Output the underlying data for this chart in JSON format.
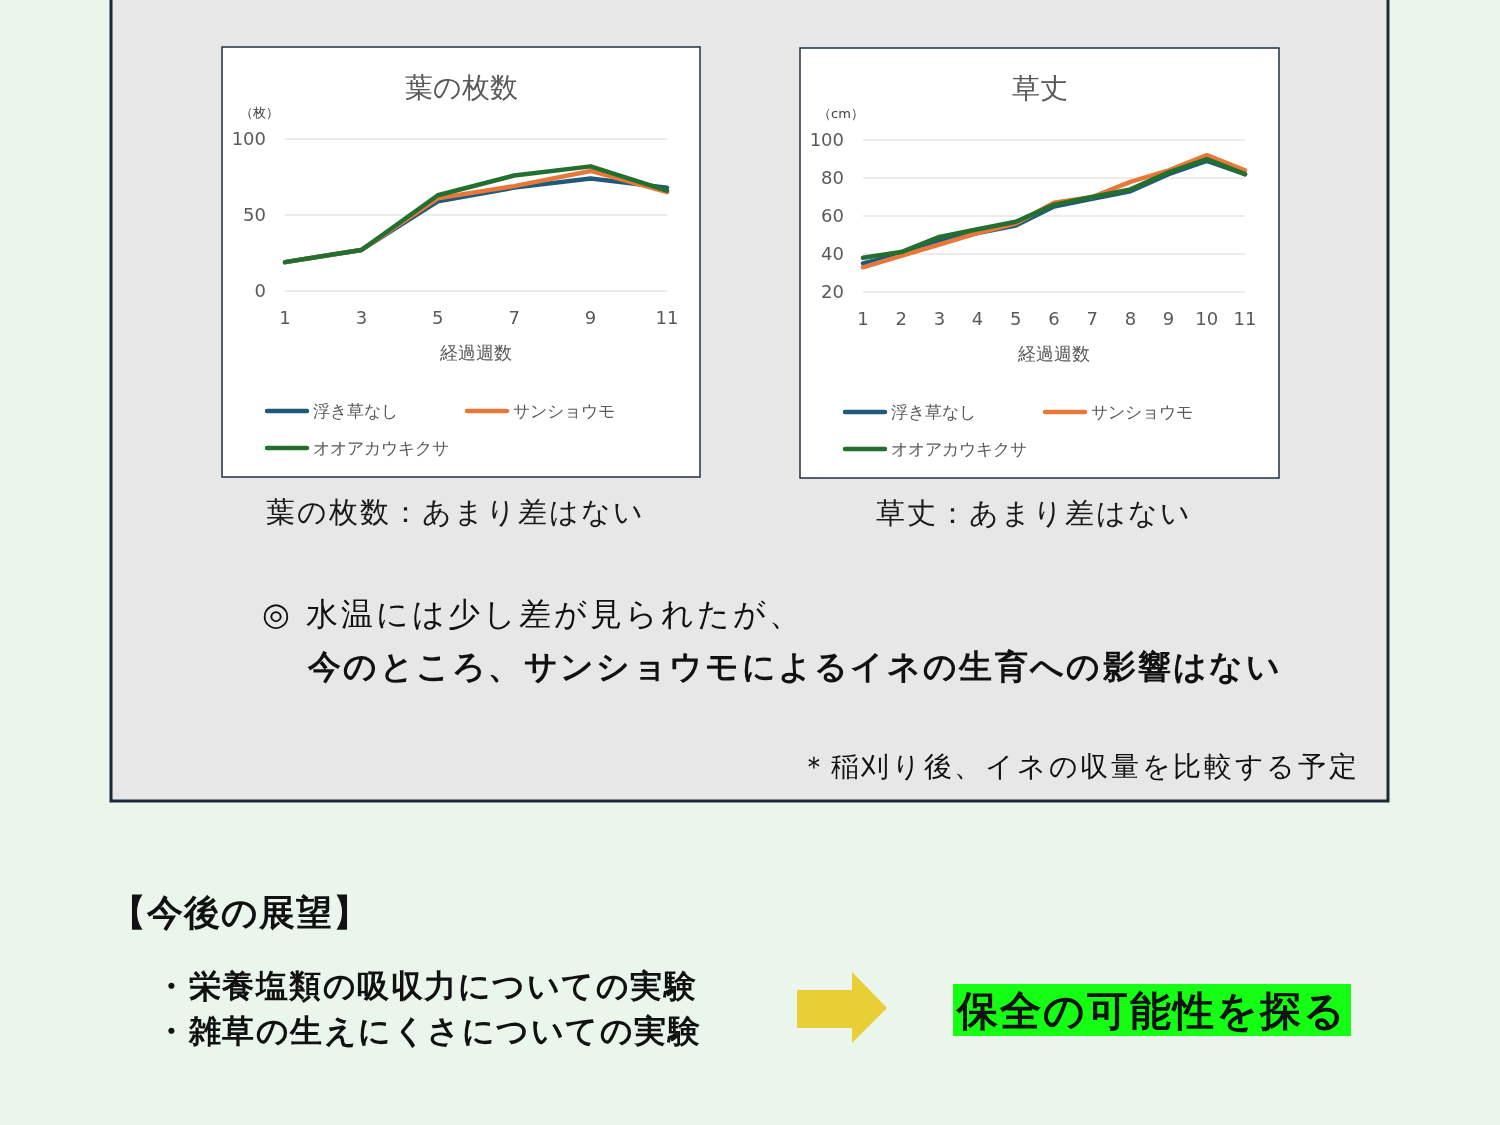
{
  "chart_data": [
    {
      "type": "line",
      "title": "葉の枚数",
      "xlabel": "経過週数",
      "ylabel": "（枚）",
      "categories": [
        "1",
        "3",
        "5",
        "7",
        "9",
        "11"
      ],
      "series": [
        {
          "name": "浮き草なし",
          "color": "#1f5a7a",
          "values": [
            19,
            27,
            59,
            68,
            74,
            68
          ]
        },
        {
          "name": "サンショウモ",
          "color": "#e8783a",
          "values": [
            19,
            27,
            61,
            69,
            79,
            65
          ]
        },
        {
          "name": "オオアカウキクサ",
          "color": "#22702f",
          "values": [
            19,
            27,
            63,
            76,
            82,
            66
          ]
        }
      ],
      "ylim": [
        0,
        100
      ],
      "yticks": [
        0,
        50,
        100
      ],
      "grid": "y",
      "legend": "bottom",
      "annotations": [
        "葉の枚数：あまり差はない"
      ]
    },
    {
      "type": "line",
      "title": "草丈",
      "xlabel": "経過週数",
      "ylabel": "（cm）",
      "categories": [
        "1",
        "2",
        "3",
        "4",
        "5",
        "6",
        "7",
        "8",
        "9",
        "10",
        "11"
      ],
      "series": [
        {
          "name": "浮き草なし",
          "color": "#1f5a7a",
          "values": [
            35,
            40,
            47,
            51,
            55,
            65,
            69,
            73,
            82,
            89,
            82
          ]
        },
        {
          "name": "サンショウモ",
          "color": "#e8783a",
          "values": [
            33,
            39,
            45,
            51,
            56,
            67,
            70,
            78,
            84,
            92,
            84
          ]
        },
        {
          "name": "オオアカウキクサ",
          "color": "#22702f",
          "values": [
            38,
            41,
            49,
            53,
            57,
            66,
            70,
            74,
            83,
            90,
            82
          ]
        }
      ],
      "ylim": [
        20,
        100
      ],
      "yticks": [
        20,
        40,
        60,
        80,
        100
      ],
      "grid": "y",
      "legend": "bottom",
      "annotations": [
        "草丈：あまり差はない"
      ]
    },
    {
      "type": "other",
      "annotations": [
        "◎ 水温には少し差が見られたが、",
        "今のところ、サンショウモによるイネの生育への影響はない",
        "＊稲刈り後、イネの収量を比較する予定"
      ]
    },
    {
      "type": "other",
      "title": "【今後の展望】",
      "annotations": [
        "・栄養塩類の吸収力についての実験",
        "・雑草の生えにくさについての実験",
        "保全の可能性を探る"
      ]
    }
  ]
}
